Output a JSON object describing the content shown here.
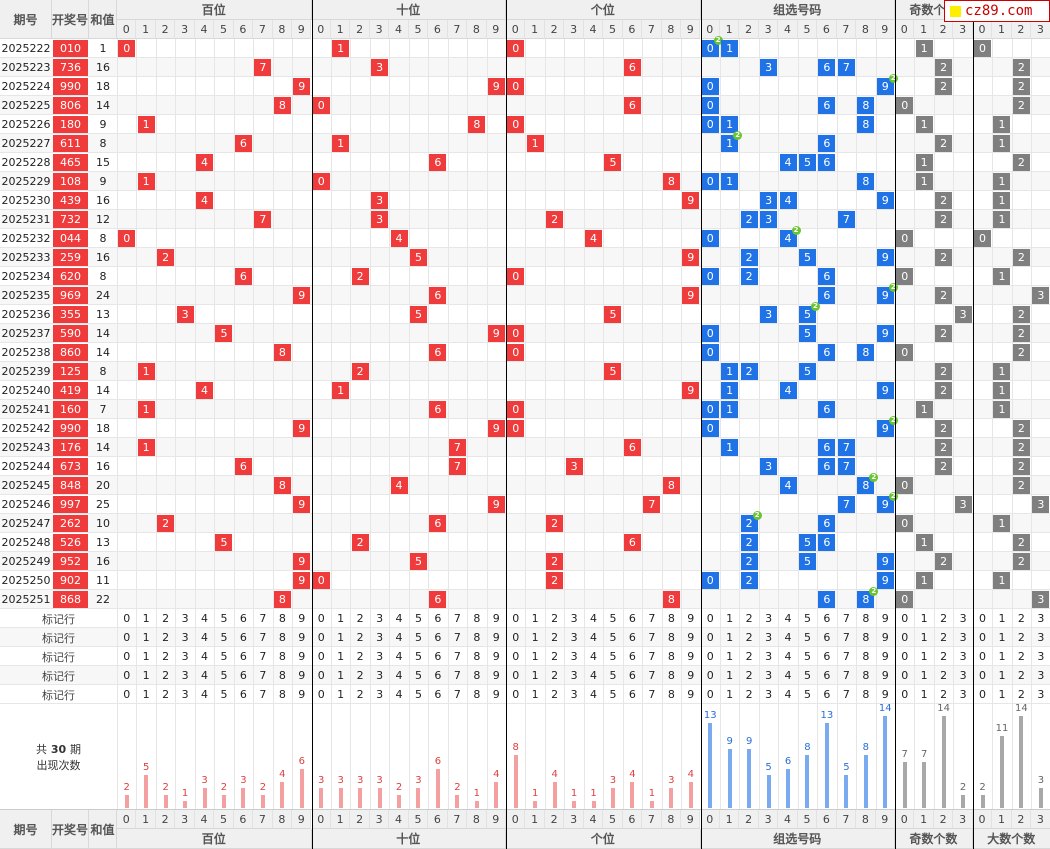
{
  "site": {
    "logo_text": "cz89.com"
  },
  "header": {
    "col_issue": "期号",
    "col_number": "开奖号",
    "col_sum": "和值",
    "groups": [
      "百位",
      "十位",
      "个位",
      "组选号码",
      "奇数个数",
      "大数个数"
    ],
    "digits": [
      "0",
      "1",
      "2",
      "3",
      "4",
      "5",
      "6",
      "7",
      "8",
      "9"
    ],
    "counts": [
      "0",
      "1",
      "2",
      "3"
    ]
  },
  "marker_label": "标记行",
  "stats_label": {
    "prefix": "共",
    "periods": "30",
    "suffix": "期",
    "line2": "出现次数"
  },
  "colors": {
    "red": "#ef3b3b",
    "blue": "#1f73e6",
    "gray": "#7f7f7f",
    "badge": "#68c42f"
  },
  "rows": [
    {
      "issue": "2025222",
      "num": "010",
      "sum": "1"
    },
    {
      "issue": "2025223",
      "num": "736",
      "sum": "16"
    },
    {
      "issue": "2025224",
      "num": "990",
      "sum": "18"
    },
    {
      "issue": "2025225",
      "num": "806",
      "sum": "14"
    },
    {
      "issue": "2025226",
      "num": "180",
      "sum": "9"
    },
    {
      "issue": "2025227",
      "num": "611",
      "sum": "8"
    },
    {
      "issue": "2025228",
      "num": "465",
      "sum": "15"
    },
    {
      "issue": "2025229",
      "num": "108",
      "sum": "9"
    },
    {
      "issue": "2025230",
      "num": "439",
      "sum": "16"
    },
    {
      "issue": "2025231",
      "num": "732",
      "sum": "12"
    },
    {
      "issue": "2025232",
      "num": "044",
      "sum": "8"
    },
    {
      "issue": "2025233",
      "num": "259",
      "sum": "16"
    },
    {
      "issue": "2025234",
      "num": "620",
      "sum": "8"
    },
    {
      "issue": "2025235",
      "num": "969",
      "sum": "24"
    },
    {
      "issue": "2025236",
      "num": "355",
      "sum": "13"
    },
    {
      "issue": "2025237",
      "num": "590",
      "sum": "14"
    },
    {
      "issue": "2025238",
      "num": "860",
      "sum": "14"
    },
    {
      "issue": "2025239",
      "num": "125",
      "sum": "8"
    },
    {
      "issue": "2025240",
      "num": "419",
      "sum": "14"
    },
    {
      "issue": "2025241",
      "num": "160",
      "sum": "7"
    },
    {
      "issue": "2025242",
      "num": "990",
      "sum": "18"
    },
    {
      "issue": "2025243",
      "num": "176",
      "sum": "14"
    },
    {
      "issue": "2025244",
      "num": "673",
      "sum": "16"
    },
    {
      "issue": "2025245",
      "num": "848",
      "sum": "20"
    },
    {
      "issue": "2025246",
      "num": "997",
      "sum": "25"
    },
    {
      "issue": "2025247",
      "num": "262",
      "sum": "10"
    },
    {
      "issue": "2025248",
      "num": "526",
      "sum": "13"
    },
    {
      "issue": "2025249",
      "num": "952",
      "sum": "16"
    },
    {
      "issue": "2025250",
      "num": "902",
      "sum": "11"
    },
    {
      "issue": "2025251",
      "num": "868",
      "sum": "22"
    }
  ],
  "chart_data": {
    "type": "bar",
    "title": "共 30 期 出现次数",
    "groups": [
      {
        "name": "百位",
        "categories": [
          "0",
          "1",
          "2",
          "3",
          "4",
          "5",
          "6",
          "7",
          "8",
          "9"
        ],
        "values": [
          2,
          5,
          2,
          1,
          3,
          2,
          3,
          2,
          4,
          6
        ]
      },
      {
        "name": "十位",
        "categories": [
          "0",
          "1",
          "2",
          "3",
          "4",
          "5",
          "6",
          "7",
          "8",
          "9"
        ],
        "values": [
          3,
          3,
          3,
          3,
          2,
          3,
          6,
          2,
          1,
          4
        ]
      },
      {
        "name": "个位",
        "categories": [
          "0",
          "1",
          "2",
          "3",
          "4",
          "5",
          "6",
          "7",
          "8",
          "9"
        ],
        "values": [
          8,
          1,
          4,
          1,
          1,
          3,
          4,
          1,
          3,
          4
        ]
      },
      {
        "name": "组选号码",
        "categories": [
          "0",
          "1",
          "2",
          "3",
          "4",
          "5",
          "6",
          "7",
          "8",
          "9"
        ],
        "values": [
          13,
          9,
          9,
          5,
          6,
          8,
          13,
          5,
          8,
          14
        ]
      },
      {
        "name": "奇数个数",
        "categories": [
          "0",
          "1",
          "2",
          "3"
        ],
        "values": [
          7,
          7,
          14,
          2
        ]
      },
      {
        "name": "大数个数",
        "categories": [
          "0",
          "1",
          "2",
          "3"
        ],
        "values": [
          2,
          11,
          14,
          3
        ]
      }
    ]
  }
}
